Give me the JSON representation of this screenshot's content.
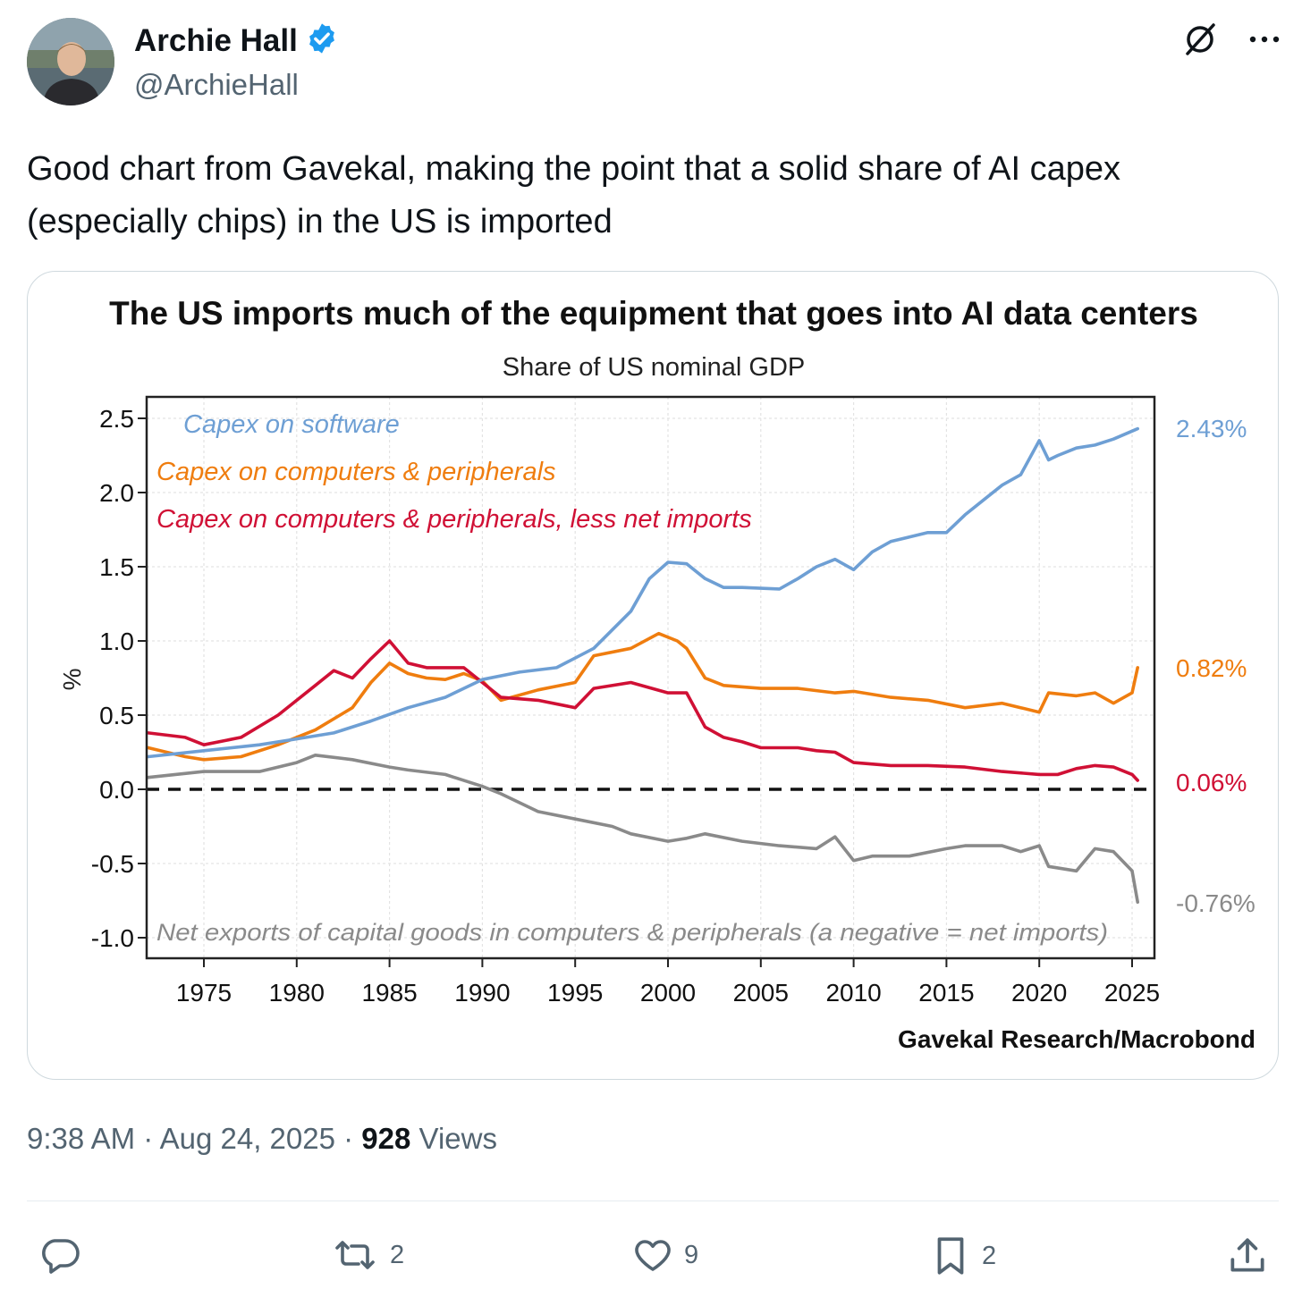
{
  "author": {
    "name": "Archie Hall",
    "handle": "@ArchieHall",
    "verified": true
  },
  "tweet": {
    "text": "Good chart from Gavekal, making the point that a solid share of AI capex (especially chips) in the US is imported",
    "time": "9:38 AM",
    "sep1": "·",
    "date": "Aug 24, 2025",
    "sep2": "·",
    "views_count": "928",
    "views_label": "Views"
  },
  "actions": {
    "replies": "",
    "reposts": "2",
    "likes": "9",
    "bookmarks": "2"
  },
  "colors": {
    "software": "#6e9fd4",
    "computers": "#ef7d0f",
    "computers_less_imports": "#d01035",
    "net_exports": "#8a8a8a",
    "text_secondary": "#536471",
    "verified": "#1d9bf0"
  },
  "chart_data": {
    "type": "line",
    "title": "The US imports much of the equipment that goes into AI data centers",
    "subtitle": "Share of US nominal GDP",
    "ylabel": "%",
    "xlabel": "",
    "source": "Gavekal Research/Macrobond",
    "xlim": [
      1972,
      2026.5
    ],
    "ylim": [
      -1.1,
      2.6
    ],
    "x_ticks": [
      1975,
      1980,
      1985,
      1990,
      1995,
      2000,
      2005,
      2010,
      2015,
      2020,
      2025
    ],
    "x_tick_labels": [
      "1975",
      "1980",
      "1985",
      "1990",
      "1995",
      "2000",
      "2005",
      "2010",
      "2015",
      "2020",
      "2025"
    ],
    "y_ticks": [
      2.5,
      2.0,
      1.5,
      1.0,
      0.5,
      0.0,
      -0.5,
      -1.0
    ],
    "y_tick_labels": [
      "2.5",
      "2.0",
      "1.5",
      "1.0",
      "0.5",
      "0.0",
      "-0.5",
      "-1.0"
    ],
    "zero_line": "dashed",
    "grid": true,
    "series": [
      {
        "name": "Capex on software",
        "color": "#6e9fd4",
        "end_label": "2.43%",
        "x": [
          1972,
          1975,
          1978,
          1980,
          1982,
          1984,
          1986,
          1988,
          1990,
          1992,
          1994,
          1996,
          1998,
          1999,
          2000,
          2001,
          2002,
          2003,
          2004,
          2006,
          2007,
          2008,
          2009,
          2010,
          2011,
          2012,
          2013,
          2014,
          2015,
          2016,
          2017,
          2018,
          2019,
          2020,
          2020.5,
          2021,
          2022,
          2023,
          2024,
          2025.3
        ],
        "values": [
          0.22,
          0.26,
          0.3,
          0.34,
          0.38,
          0.46,
          0.55,
          0.62,
          0.74,
          0.79,
          0.82,
          0.95,
          1.2,
          1.42,
          1.53,
          1.52,
          1.42,
          1.36,
          1.36,
          1.35,
          1.42,
          1.5,
          1.55,
          1.48,
          1.6,
          1.67,
          1.7,
          1.73,
          1.73,
          1.85,
          1.95,
          2.05,
          2.12,
          2.35,
          2.22,
          2.25,
          2.3,
          2.32,
          2.36,
          2.43
        ]
      },
      {
        "name": "Capex on computers & peripherals",
        "color": "#ef7d0f",
        "end_label": "0.82%",
        "x": [
          1972,
          1974,
          1975,
          1977,
          1979,
          1981,
          1983,
          1984,
          1985,
          1986,
          1987,
          1988,
          1989,
          1990,
          1991,
          1993,
          1995,
          1996,
          1998,
          1999.5,
          2000.5,
          2001,
          2002,
          2003,
          2005,
          2007,
          2009,
          2010,
          2012,
          2014,
          2016,
          2018,
          2019,
          2020,
          2020.5,
          2022,
          2023,
          2024,
          2025,
          2025.3
        ],
        "values": [
          0.28,
          0.22,
          0.2,
          0.22,
          0.3,
          0.4,
          0.55,
          0.72,
          0.85,
          0.78,
          0.75,
          0.74,
          0.78,
          0.73,
          0.6,
          0.67,
          0.72,
          0.9,
          0.95,
          1.05,
          1.0,
          0.95,
          0.75,
          0.7,
          0.68,
          0.68,
          0.65,
          0.66,
          0.62,
          0.6,
          0.55,
          0.58,
          0.55,
          0.52,
          0.65,
          0.63,
          0.65,
          0.58,
          0.65,
          0.82
        ]
      },
      {
        "name": "Capex on computers & peripherals, less net imports",
        "color": "#d01035",
        "end_label": "0.06%",
        "x": [
          1972,
          1974,
          1975,
          1977,
          1979,
          1981,
          1982,
          1983,
          1984,
          1985,
          1986,
          1987,
          1989,
          1990,
          1991,
          1993,
          1995,
          1996,
          1998,
          2000,
          2001,
          2002,
          2003,
          2004,
          2005,
          2007,
          2008,
          2009,
          2010,
          2012,
          2014,
          2016,
          2018,
          2020,
          2021,
          2022,
          2023,
          2024,
          2025,
          2025.3
        ],
        "values": [
          0.38,
          0.35,
          0.3,
          0.35,
          0.5,
          0.7,
          0.8,
          0.75,
          0.88,
          1.0,
          0.85,
          0.82,
          0.82,
          0.72,
          0.62,
          0.6,
          0.55,
          0.68,
          0.72,
          0.65,
          0.65,
          0.42,
          0.35,
          0.32,
          0.28,
          0.28,
          0.26,
          0.25,
          0.18,
          0.16,
          0.16,
          0.15,
          0.12,
          0.1,
          0.1,
          0.14,
          0.16,
          0.15,
          0.1,
          0.06
        ]
      },
      {
        "name": "Net exports of capital goods in computers & peripherals (a negative = net imports)",
        "color": "#8a8a8a",
        "end_label": "-0.76%",
        "x": [
          1972,
          1975,
          1978,
          1980,
          1981,
          1983,
          1985,
          1986,
          1988,
          1990,
          1991,
          1993,
          1995,
          1997,
          1998,
          2000,
          2001,
          2002,
          2004,
          2006,
          2008,
          2009,
          2010,
          2011,
          2013,
          2015,
          2016,
          2018,
          2019,
          2020,
          2020.5,
          2022,
          2023,
          2024,
          2025,
          2025.3
        ],
        "values": [
          0.08,
          0.12,
          0.12,
          0.18,
          0.23,
          0.2,
          0.15,
          0.13,
          0.1,
          0.02,
          -0.03,
          -0.15,
          -0.2,
          -0.25,
          -0.3,
          -0.35,
          -0.33,
          -0.3,
          -0.35,
          -0.38,
          -0.4,
          -0.32,
          -0.48,
          -0.45,
          -0.45,
          -0.4,
          -0.38,
          -0.38,
          -0.42,
          -0.38,
          -0.52,
          -0.55,
          -0.4,
          -0.42,
          -0.55,
          -0.76
        ]
      }
    ]
  }
}
